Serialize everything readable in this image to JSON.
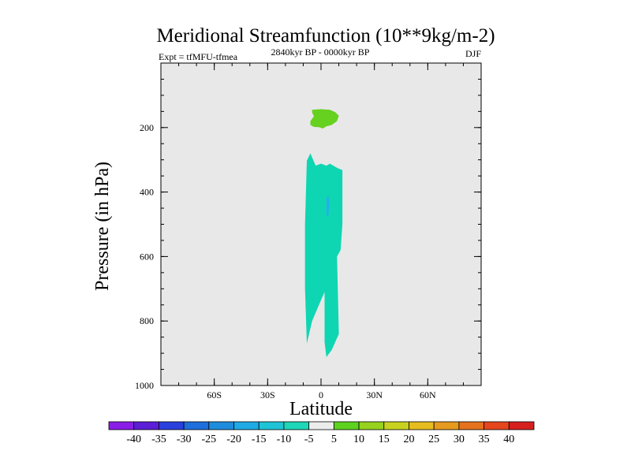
{
  "chart_data": {
    "type": "contour",
    "title": "Meridional Streamfunction (10**9kg/m-2)",
    "subtitle_left": "Expt = tfMFU-tfmea",
    "subtitle_center": "2840kyr BP - 0000kyr BP",
    "subtitle_right": "DJF",
    "xlabel": "Latitude",
    "ylabel": "Pressure (in hPa)",
    "xlim": [
      -90,
      90
    ],
    "ylim": [
      1000,
      0
    ],
    "background_color": "#e8e8e8",
    "x_ticks": [
      {
        "value": -60,
        "label": "60S"
      },
      {
        "value": -30,
        "label": "30S"
      },
      {
        "value": 0,
        "label": "0"
      },
      {
        "value": 30,
        "label": "30N"
      },
      {
        "value": 60,
        "label": "60N"
      }
    ],
    "y_ticks": [
      {
        "value": 200,
        "label": "200"
      },
      {
        "value": 400,
        "label": "400"
      },
      {
        "value": 600,
        "label": "600"
      },
      {
        "value": 800,
        "label": "800"
      },
      {
        "value": 1000,
        "label": "1000"
      }
    ],
    "y_minor_step": 50,
    "x_minor_step": 10,
    "contour_regions": [
      {
        "name": "positive-cell",
        "level_range": [
          5,
          10
        ],
        "color": "#66d11f",
        "points": [
          [
            -5,
            145
          ],
          [
            0,
            143
          ],
          [
            5,
            145
          ],
          [
            8,
            152
          ],
          [
            10,
            163
          ],
          [
            9,
            180
          ],
          [
            6,
            192
          ],
          [
            3,
            196
          ],
          [
            1,
            203
          ],
          [
            -1,
            199
          ],
          [
            -4,
            198
          ],
          [
            -6,
            192
          ],
          [
            -6,
            180
          ],
          [
            -4,
            165
          ],
          [
            -5,
            153
          ]
        ]
      },
      {
        "name": "negative-cell",
        "level_range": [
          -10,
          -5
        ],
        "color": "#0ed6b2",
        "points": [
          [
            -8,
            303
          ],
          [
            -6,
            280
          ],
          [
            -3,
            318
          ],
          [
            0,
            312
          ],
          [
            3,
            318
          ],
          [
            5,
            312
          ],
          [
            9,
            325
          ],
          [
            12,
            332
          ],
          [
            12,
            500
          ],
          [
            11,
            580
          ],
          [
            9,
            600
          ],
          [
            10,
            840
          ],
          [
            6,
            890
          ],
          [
            3,
            912
          ],
          [
            2,
            865
          ],
          [
            2,
            710
          ],
          [
            0,
            735
          ],
          [
            -5,
            800
          ],
          [
            -8,
            870
          ],
          [
            -9,
            700
          ],
          [
            -9,
            500
          ]
        ]
      },
      {
        "name": "negative-core",
        "level_range": [
          -15,
          -10
        ],
        "color": "#20b4e6",
        "points": [
          [
            3,
            420
          ],
          [
            4,
            410
          ],
          [
            5,
            430
          ],
          [
            4,
            480
          ],
          [
            3,
            470
          ]
        ]
      }
    ],
    "colorbar": {
      "labels": [
        "-40",
        "-35",
        "-30",
        "-25",
        "-20",
        "-15",
        "-10",
        "-5",
        "5",
        "10",
        "15",
        "20",
        "25",
        "30",
        "35",
        "40"
      ],
      "colors": [
        "#8a1ee6",
        "#5c1ed6",
        "#2a40dd",
        "#1e6edc",
        "#1e8cdc",
        "#1eaae6",
        "#1ec4d6",
        "#1ed6b8",
        "#ececec",
        "#5ed21e",
        "#96d21e",
        "#c8d21e",
        "#e6bc1e",
        "#e69a1e",
        "#e6721e",
        "#e6461e",
        "#d6201e"
      ]
    }
  }
}
